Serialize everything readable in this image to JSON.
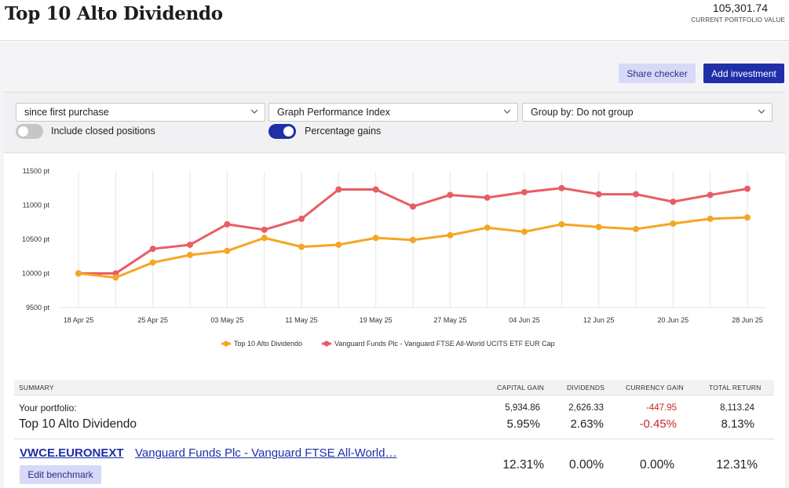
{
  "header": {
    "title": "Top 10 Alto Dividendo",
    "portfolio_value": "105,301.74",
    "portfolio_value_label": "CURRENT PORTFOLIO VALUE"
  },
  "actions": {
    "share_label": "Share checker",
    "add_label": "Add investment"
  },
  "controls": {
    "period": "since first purchase",
    "graph_type": "Graph Performance Index",
    "group_by": "Group by: Do not group",
    "include_closed_label": "Include closed positions",
    "include_closed": false,
    "percentage_gains_label": "Percentage gains",
    "percentage_gains": true
  },
  "colors": {
    "accent": "#1f2fa8",
    "series_portfolio": "#f5a623",
    "series_benchmark": "#e85d64",
    "negative": "#c62828"
  },
  "chart_data": {
    "type": "line",
    "x": [
      "18 Apr 25",
      "21 Apr 25",
      "25 Apr 25",
      "29 Apr 25",
      "03 May 25",
      "07 May 25",
      "11 May 25",
      "15 May 25",
      "19 May 25",
      "23 May 25",
      "27 May 25",
      "31 May 25",
      "04 Jun 25",
      "08 Jun 25",
      "12 Jun 25",
      "16 Jun 25",
      "20 Jun 25",
      "24 Jun 25",
      "28 Jun 25"
    ],
    "x_tick_labels": [
      "18 Apr 25",
      "25 Apr 25",
      "03 May 25",
      "11 May 25",
      "19 May 25",
      "27 May 25",
      "04 Jun 25",
      "12 Jun 25",
      "20 Jun 25",
      "28 Jun 25"
    ],
    "y_tick_labels": [
      "11500 pt",
      "11000 pt",
      "10500 pt",
      "10000 pt",
      "9500 pt"
    ],
    "y_ticks": [
      11500,
      11000,
      10500,
      10000,
      9500
    ],
    "ylim": [
      9500,
      11500
    ],
    "grid": "vertical",
    "legend_position": "bottom",
    "series": [
      {
        "name": "Top 10 Alto Dividendo",
        "values": [
          10000,
          9940,
          10160,
          10270,
          10330,
          10520,
          10390,
          10420,
          10520,
          10490,
          10560,
          10670,
          10610,
          10720,
          10680,
          10650,
          10730,
          10800,
          10820
        ]
      },
      {
        "name": "Vanguard Funds Plc - Vanguard FTSE All-World UCITS ETF EUR Cap",
        "values": [
          10000,
          10000,
          10360,
          10420,
          10720,
          10640,
          10800,
          11230,
          11230,
          10980,
          11150,
          11110,
          11190,
          11250,
          11160,
          11160,
          11050,
          11150,
          11240
        ]
      }
    ]
  },
  "summary": {
    "headers": {
      "summary": "SUMMARY",
      "capital_gain": "CAPITAL GAIN",
      "dividends": "DIVIDENDS",
      "currency_gain": "CURRENCY GAIN",
      "total_return": "TOTAL RETURN"
    },
    "portfolio_label": "Your portfolio:",
    "portfolio_name": "Top 10 Alto Dividendo",
    "amounts": {
      "capital_gain": "5,934.86",
      "dividends": "2,626.33",
      "currency_gain": "-447.95",
      "total_return": "8,113.24"
    },
    "percents": {
      "capital_gain": "5.95%",
      "dividends": "2.63%",
      "currency_gain": "-0.45%",
      "total_return": "8.13%"
    },
    "benchmark": {
      "ticker": "VWCE.EURONEXT",
      "name": "Vanguard Funds Plc - Vanguard FTSE All-World…",
      "edit_label": "Edit benchmark",
      "percents": {
        "capital_gain": "12.31%",
        "dividends": "0.00%",
        "currency_gain": "0.00%",
        "total_return": "12.31%"
      }
    }
  }
}
